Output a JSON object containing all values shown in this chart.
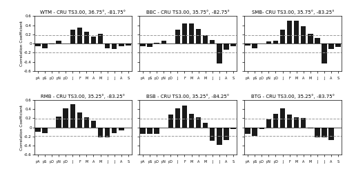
{
  "subplots": [
    {
      "title": "WTM - CRU TS3.00, 36.75°, -81.75°",
      "values": [
        -0.06,
        -0.1,
        -0.02,
        0.06,
        0.0,
        0.3,
        0.35,
        0.26,
        0.16,
        0.22,
        -0.1,
        -0.12,
        -0.06,
        -0.05
      ]
    },
    {
      "title": "BBC - CRU TS3.00, 35.75°, -82.75°",
      "values": [
        -0.06,
        -0.08,
        0.02,
        0.06,
        0.0,
        0.3,
        0.44,
        0.44,
        0.32,
        0.18,
        0.08,
        -0.44,
        -0.14,
        -0.06
      ]
    },
    {
      "title": "SMB- CRU TS3.00, 35.75°, -83.25°",
      "values": [
        -0.04,
        -0.1,
        0.0,
        0.04,
        0.06,
        0.3,
        0.5,
        0.5,
        0.38,
        0.22,
        0.12,
        -0.44,
        -0.12,
        -0.08
      ]
    },
    {
      "title": "RMB - CRU TS3.00, 35.25°, -83.25°",
      "values": [
        -0.1,
        -0.12,
        0.0,
        0.24,
        0.42,
        0.5,
        0.32,
        0.22,
        0.14,
        -0.22,
        -0.22,
        -0.12,
        -0.06,
        0.0
      ]
    },
    {
      "title": "BSB - CRU TS3.00, 35.25°, -84.25°",
      "values": [
        -0.14,
        -0.14,
        -0.14,
        0.0,
        0.28,
        0.42,
        0.48,
        0.3,
        0.22,
        0.1,
        -0.3,
        -0.38,
        -0.28,
        -0.04
      ]
    },
    {
      "title": "BTG - CRU TS3.00, 35.25°, -83.75°",
      "values": [
        -0.14,
        -0.18,
        -0.04,
        0.18,
        0.3,
        0.42,
        0.28,
        0.22,
        0.2,
        -0.02,
        -0.22,
        -0.22,
        -0.28,
        0.0
      ]
    }
  ],
  "x_labels": [
    "pA",
    "pS",
    "pO",
    "pN",
    "pD",
    "J",
    "F",
    "M",
    "A",
    "M",
    "J",
    "J",
    "A",
    "S"
  ],
  "ylim": [
    -0.6,
    0.6
  ],
  "yticks": [
    -0.6,
    -0.4,
    -0.2,
    0.0,
    0.2,
    0.4,
    0.6
  ],
  "ytick_labels": [
    "-0.6",
    "-0.4",
    "-0.2",
    "0",
    "0.2",
    "0.4",
    "0.6"
  ],
  "confidence_line": 0.19,
  "bar_color": "#1a1a1a",
  "dashed_color": "#999999",
  "ylabel": "Correlation Coefficient"
}
